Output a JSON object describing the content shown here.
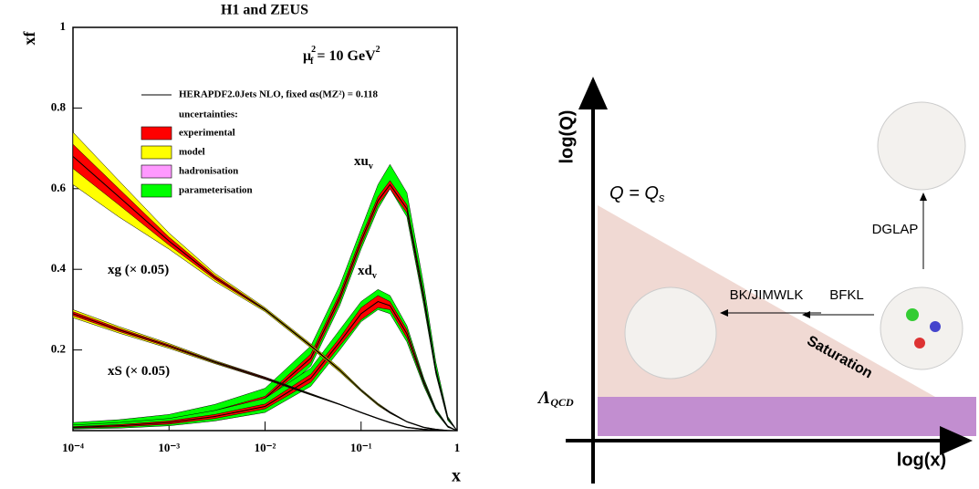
{
  "chart_data": {
    "type": "band-line",
    "title": "H1 and ZEUS",
    "y_label": "xf",
    "x_label": "x",
    "annotation": {
      "mu": "μ",
      "sub": "f",
      "sup": "2",
      "text": " = 10 GeV",
      "unit_sup": "2"
    },
    "log_x": true,
    "xlim": [
      0.0001,
      1
    ],
    "ylim": [
      0,
      1
    ],
    "xticks": [
      {
        "value": 0.0001,
        "label": "10⁻⁴"
      },
      {
        "value": 0.001,
        "label": "10⁻³"
      },
      {
        "value": 0.01,
        "label": "10⁻²"
      },
      {
        "value": 0.1,
        "label": "10⁻¹"
      },
      1
    ],
    "yticks": [
      0.2,
      0.4,
      0.6,
      0.8,
      1
    ],
    "legend_line": "HERAPDF2.0Jets NLO, fixed  αs(MZ²) = 0.118",
    "legend_heading": "uncertainties:",
    "legend": [
      {
        "name": "experimental",
        "color": "#ff0000"
      },
      {
        "name": "model",
        "color": "#ffff00"
      },
      {
        "name": "hadronisation",
        "color": "#ff99ff"
      },
      {
        "name": "parameterisation",
        "color": "#00ff00"
      }
    ],
    "x": [
      0.0001,
      0.0003,
      0.001,
      0.003,
      0.01,
      0.03,
      0.06,
      0.1,
      0.15,
      0.2,
      0.3,
      0.45,
      0.6,
      0.8,
      1
    ],
    "series": [
      {
        "name": "xu",
        "sub": "v",
        "band_color": "#00ff00",
        "exp_color": "#ff0000",
        "values": [
          0.01,
          0.015,
          0.025,
          0.045,
          0.08,
          0.18,
          0.33,
          0.47,
          0.57,
          0.61,
          0.55,
          0.33,
          0.15,
          0.03,
          0
        ],
        "upper": [
          0.02,
          0.027,
          0.04,
          0.065,
          0.105,
          0.21,
          0.36,
          0.5,
          0.61,
          0.66,
          0.59,
          0.36,
          0.17,
          0.035,
          0
        ],
        "lower": [
          0.005,
          0.008,
          0.015,
          0.03,
          0.06,
          0.16,
          0.31,
          0.45,
          0.55,
          0.6,
          0.53,
          0.31,
          0.14,
          0.025,
          0
        ],
        "exp_upper": [
          0.012,
          0.017,
          0.028,
          0.05,
          0.085,
          0.19,
          0.34,
          0.48,
          0.58,
          0.62,
          0.56,
          0.34,
          0.155,
          0.032,
          0
        ],
        "exp_lower": [
          0.008,
          0.013,
          0.022,
          0.04,
          0.075,
          0.17,
          0.32,
          0.46,
          0.56,
          0.6,
          0.54,
          0.32,
          0.145,
          0.028,
          0
        ]
      },
      {
        "name": "xd",
        "sub": "v",
        "band_color": "#00ff00",
        "exp_color": "#ff0000",
        "values": [
          0.008,
          0.012,
          0.02,
          0.035,
          0.06,
          0.13,
          0.22,
          0.29,
          0.32,
          0.31,
          0.24,
          0.12,
          0.05,
          0.01,
          0
        ],
        "upper": [
          0.014,
          0.02,
          0.03,
          0.05,
          0.08,
          0.155,
          0.25,
          0.32,
          0.35,
          0.335,
          0.26,
          0.13,
          0.055,
          0.012,
          0
        ],
        "lower": [
          0.004,
          0.006,
          0.012,
          0.024,
          0.045,
          0.11,
          0.2,
          0.27,
          0.3,
          0.29,
          0.22,
          0.11,
          0.045,
          0.008,
          0
        ],
        "exp_upper": [
          0.01,
          0.015,
          0.024,
          0.04,
          0.066,
          0.14,
          0.23,
          0.305,
          0.335,
          0.32,
          0.25,
          0.125,
          0.052,
          0.011,
          0
        ],
        "exp_lower": [
          0.006,
          0.009,
          0.016,
          0.03,
          0.054,
          0.12,
          0.21,
          0.275,
          0.305,
          0.3,
          0.23,
          0.115,
          0.048,
          0.009,
          0
        ]
      },
      {
        "name": "xg (× 0.05)",
        "band_color": "#ffff00",
        "exp_color": "#ff0000",
        "values": [
          0.68,
          0.58,
          0.47,
          0.38,
          0.3,
          0.21,
          0.15,
          0.1,
          0.065,
          0.045,
          0.022,
          0.008,
          0.003,
          0,
          0
        ],
        "upper": [
          0.74,
          0.62,
          0.49,
          0.39,
          0.305,
          0.215,
          0.155,
          0.103,
          0.068,
          0.047,
          0.023,
          0.009,
          0.004,
          0.001,
          0
        ],
        "lower": [
          0.61,
          0.53,
          0.45,
          0.37,
          0.295,
          0.205,
          0.145,
          0.097,
          0.062,
          0.043,
          0.021,
          0.007,
          0.002,
          0,
          0
        ],
        "exp_upper": [
          0.71,
          0.6,
          0.48,
          0.385,
          0.302,
          0.212,
          0.152,
          0.101,
          0.066,
          0.046,
          0.022,
          0.008,
          0.003,
          0.0005,
          0
        ],
        "exp_lower": [
          0.65,
          0.56,
          0.46,
          0.375,
          0.298,
          0.208,
          0.148,
          0.099,
          0.064,
          0.044,
          0.022,
          0.008,
          0.003,
          0,
          0
        ]
      },
      {
        "name": "xS (× 0.05)",
        "band_color": "#ffff00",
        "exp_color": "#ff0000",
        "values": [
          0.29,
          0.25,
          0.21,
          0.17,
          0.13,
          0.09,
          0.065,
          0.045,
          0.03,
          0.02,
          0.008,
          0.003,
          0.001,
          0,
          0
        ],
        "upper": [
          0.3,
          0.258,
          0.216,
          0.174,
          0.133,
          0.092,
          0.066,
          0.046,
          0.031,
          0.021,
          0.009,
          0.004,
          0.002,
          0.0005,
          0
        ],
        "lower": [
          0.28,
          0.242,
          0.204,
          0.166,
          0.127,
          0.088,
          0.064,
          0.044,
          0.029,
          0.019,
          0.007,
          0.002,
          0.0005,
          0,
          0
        ],
        "exp_upper": [
          0.295,
          0.254,
          0.213,
          0.172,
          0.132,
          0.091,
          0.0655,
          0.0455,
          0.0305,
          0.0205,
          0.0085,
          0.0035,
          0.0015,
          0.0003,
          0
        ],
        "exp_lower": [
          0.285,
          0.246,
          0.207,
          0.168,
          0.128,
          0.089,
          0.0645,
          0.0445,
          0.0295,
          0.0195,
          0.0075,
          0.0025,
          0.0008,
          0,
          0
        ]
      }
    ]
  },
  "diagram": {
    "y_axis": "log(Q)",
    "x_axis": "log(x)",
    "q_eq": "Q = Q",
    "q_sub": "s",
    "lambda": "Λ",
    "lambda_sub": "QCD",
    "dglap": "DGLAP",
    "bk": "BK/JIMWLK",
    "bfkl": "BFKL",
    "saturation": "Saturation"
  }
}
